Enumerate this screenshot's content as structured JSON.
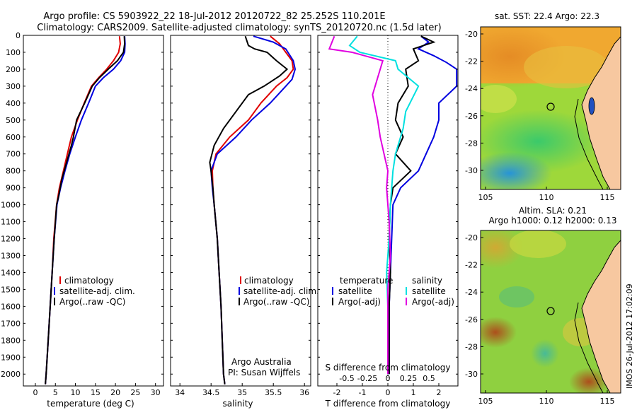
{
  "header": {
    "line1": "Argo profile: CS 5903922_22 18-Jul-2012 20120722_82 25.252S 110.201E",
    "line2": "Climatology: CARS2009. Satellite-adjusted climatology: synTS_20120720.nc (1.5d later)"
  },
  "colors": {
    "climatology": "#e00000",
    "satellite": "#0000e0",
    "argo": "#000000",
    "satellite_s": "#00e0e0",
    "argo_s": "#e000e0",
    "land": "#f7c8a0"
  },
  "depth_ticks": [
    "0",
    "100",
    "200",
    "300",
    "400",
    "500",
    "600",
    "700",
    "800",
    "900",
    "1000",
    "1100",
    "1200",
    "1300",
    "1400",
    "1500",
    "1600",
    "1700",
    "1800",
    "1900",
    "2000"
  ],
  "chart_data": [
    {
      "type": "line",
      "id": "temperature",
      "xlabel": "temperature (deg C)",
      "ylabel": "",
      "xlim": [
        -3,
        32
      ],
      "ylim": [
        2070,
        0
      ],
      "xticks": [
        0,
        5,
        10,
        15,
        20,
        25,
        30
      ],
      "x_tick_labels": [
        "0",
        "5",
        "10",
        "15",
        "20",
        "25",
        "30"
      ],
      "legend": [
        "climatology",
        "satellite-adj. clim.",
        "Argo(..raw -QC)"
      ],
      "series": [
        {
          "name": "climatology",
          "color": "#e00000",
          "points": [
            [
              21.0,
              5
            ],
            [
              21.2,
              50
            ],
            [
              20.8,
              100
            ],
            [
              19.5,
              150
            ],
            [
              17.8,
              200
            ],
            [
              15.8,
              250
            ],
            [
              14.0,
              300
            ],
            [
              12.2,
              400
            ],
            [
              10.5,
              500
            ],
            [
              9.0,
              600
            ],
            [
              8.0,
              700
            ],
            [
              7.0,
              800
            ],
            [
              6.0,
              900
            ],
            [
              5.3,
              1000
            ],
            [
              4.6,
              1200
            ],
            [
              4.2,
              1400
            ],
            [
              3.7,
              1600
            ],
            [
              3.2,
              1800
            ],
            [
              2.7,
              2000
            ],
            [
              2.5,
              2060
            ]
          ]
        },
        {
          "name": "satellite-adj. clim.",
          "color": "#0000e0",
          "points": [
            [
              22.3,
              5
            ],
            [
              22.4,
              50
            ],
            [
              22.3,
              100
            ],
            [
              21.3,
              150
            ],
            [
              19.5,
              200
            ],
            [
              17.0,
              250
            ],
            [
              15.0,
              300
            ],
            [
              13.3,
              400
            ],
            [
              11.5,
              500
            ],
            [
              10.0,
              600
            ],
            [
              8.6,
              700
            ],
            [
              7.4,
              800
            ],
            [
              6.3,
              900
            ],
            [
              5.4,
              1000
            ],
            [
              4.7,
              1200
            ],
            [
              4.2,
              1400
            ],
            [
              3.7,
              1600
            ],
            [
              3.2,
              1800
            ],
            [
              2.7,
              2000
            ],
            [
              2.5,
              2060
            ]
          ]
        },
        {
          "name": "Argo(..raw -QC)",
          "color": "#000000",
          "points": [
            [
              22.2,
              5
            ],
            [
              22.3,
              50
            ],
            [
              22.0,
              100
            ],
            [
              20.5,
              150
            ],
            [
              18.2,
              200
            ],
            [
              16.0,
              250
            ],
            [
              14.2,
              300
            ],
            [
              12.3,
              400
            ],
            [
              10.3,
              500
            ],
            [
              9.5,
              600
            ],
            [
              9.0,
              650
            ],
            [
              7.8,
              750
            ],
            [
              6.6,
              850
            ],
            [
              5.8,
              950
            ],
            [
              5.3,
              1000
            ],
            [
              4.7,
              1200
            ],
            [
              4.2,
              1400
            ],
            [
              3.7,
              1600
            ],
            [
              3.2,
              1800
            ],
            [
              2.7,
              2000
            ],
            [
              2.5,
              2060
            ]
          ]
        }
      ]
    },
    {
      "type": "line",
      "id": "salinity",
      "xlabel": "salinity",
      "ylabel": "",
      "xlim": [
        33.85,
        36.1
      ],
      "ylim": [
        2070,
        0
      ],
      "xticks": [
        34,
        34.5,
        35,
        35.5,
        36
      ],
      "x_tick_labels": [
        "34",
        "34.5",
        "35",
        "35.5",
        "36"
      ],
      "legend": [
        "climatology",
        "satellite-adj. clim.",
        "Argo(..raw -QC)"
      ],
      "annotation": [
        "Argo Australia",
        "PI: Susan Wijffels"
      ],
      "series": [
        {
          "name": "climatology",
          "color": "#e00000",
          "points": [
            [
              35.45,
              5
            ],
            [
              35.6,
              50
            ],
            [
              35.7,
              100
            ],
            [
              35.8,
              150
            ],
            [
              35.82,
              200
            ],
            [
              35.72,
              250
            ],
            [
              35.55,
              300
            ],
            [
              35.3,
              400
            ],
            [
              35.1,
              500
            ],
            [
              34.8,
              600
            ],
            [
              34.58,
              700
            ],
            [
              34.52,
              800
            ],
            [
              34.53,
              900
            ],
            [
              34.55,
              1000
            ],
            [
              34.6,
              1200
            ],
            [
              34.63,
              1400
            ],
            [
              34.66,
              1600
            ],
            [
              34.68,
              1800
            ],
            [
              34.7,
              2000
            ],
            [
              34.72,
              2060
            ]
          ]
        },
        {
          "name": "satellite-adj. clim.",
          "color": "#0000e0",
          "points": [
            [
              35.18,
              5
            ],
            [
              35.5,
              40
            ],
            [
              35.7,
              80
            ],
            [
              35.82,
              150
            ],
            [
              35.85,
              200
            ],
            [
              35.8,
              260
            ],
            [
              35.65,
              320
            ],
            [
              35.45,
              400
            ],
            [
              35.15,
              500
            ],
            [
              34.9,
              600
            ],
            [
              34.6,
              700
            ],
            [
              34.5,
              800
            ],
            [
              34.52,
              900
            ],
            [
              34.55,
              1000
            ],
            [
              34.6,
              1200
            ],
            [
              34.63,
              1400
            ],
            [
              34.66,
              1600
            ],
            [
              34.68,
              1800
            ],
            [
              34.7,
              2000
            ],
            [
              34.72,
              2060
            ]
          ]
        },
        {
          "name": "Argo(..raw -QC)",
          "color": "#000000",
          "points": [
            [
              35.05,
              5
            ],
            [
              35.1,
              60
            ],
            [
              35.2,
              80
            ],
            [
              35.4,
              100
            ],
            [
              35.55,
              150
            ],
            [
              35.72,
              200
            ],
            [
              35.6,
              240
            ],
            [
              35.35,
              300
            ],
            [
              35.1,
              350
            ],
            [
              34.9,
              450
            ],
            [
              34.7,
              550
            ],
            [
              34.55,
              650
            ],
            [
              34.48,
              750
            ],
            [
              34.5,
              800
            ],
            [
              34.53,
              900
            ],
            [
              34.55,
              1000
            ],
            [
              34.6,
              1200
            ],
            [
              34.63,
              1400
            ],
            [
              34.66,
              1600
            ],
            [
              34.68,
              1800
            ],
            [
              34.7,
              2000
            ],
            [
              34.72,
              2060
            ]
          ]
        }
      ]
    },
    {
      "type": "line",
      "id": "differences",
      "xlabel": "T difference from climatology",
      "xlabel_top": "S difference from climatology",
      "xlim": [
        -2.75,
        2.75
      ],
      "ylim": [
        2070,
        0
      ],
      "xticks": [
        -2,
        -1,
        0,
        1,
        2
      ],
      "x_tick_labels": [
        "-2",
        "-1",
        "0",
        "1",
        "2"
      ],
      "s_ticks": [
        -0.5,
        -0.25,
        0,
        0.25,
        0.5
      ],
      "s_tick_labels": [
        "-0.5",
        "-0.25",
        "0",
        "0.25",
        "0.5"
      ],
      "legend_temperature": [
        "temperature",
        "satellite",
        "Argo(-adj)"
      ],
      "legend_salinity": [
        "salinity",
        "satellite",
        "Argo(-adj)"
      ],
      "series": [
        {
          "name": "satellite",
          "color": "#0000e0",
          "points": [
            [
              1.3,
              5
            ],
            [
              1.6,
              40
            ],
            [
              1.2,
              80
            ],
            [
              1.8,
              120
            ],
            [
              2.3,
              160
            ],
            [
              2.7,
              200
            ],
            [
              2.7,
              300
            ],
            [
              2.0,
              400
            ],
            [
              2.0,
              500
            ],
            [
              1.8,
              600
            ],
            [
              1.5,
              700
            ],
            [
              1.2,
              800
            ],
            [
              0.5,
              900
            ],
            [
              0.2,
              1000
            ],
            [
              0.15,
              1200
            ],
            [
              0.1,
              1400
            ],
            [
              0.05,
              1600
            ],
            [
              0.05,
              2000
            ]
          ]
        },
        {
          "name": "Argo(-adj)",
          "color": "#000000",
          "points": [
            [
              1.3,
              5
            ],
            [
              1.8,
              40
            ],
            [
              1.0,
              80
            ],
            [
              1.2,
              150
            ],
            [
              0.7,
              200
            ],
            [
              0.8,
              300
            ],
            [
              0.4,
              400
            ],
            [
              0.3,
              500
            ],
            [
              0.6,
              600
            ],
            [
              0.3,
              700
            ],
            [
              0.9,
              800
            ],
            [
              0.2,
              900
            ],
            [
              0.1,
              1000
            ],
            [
              0.05,
              1200
            ],
            [
              0.1,
              1400
            ],
            [
              0.05,
              1600
            ],
            [
              0.05,
              2000
            ]
          ]
        },
        {
          "name": "satellite",
          "color": "#00e0e0",
          "points": [
            [
              -1.2,
              5
            ],
            [
              -1.5,
              60
            ],
            [
              -1.1,
              100
            ],
            [
              0.3,
              150
            ],
            [
              0.4,
              200
            ],
            [
              0.8,
              250
            ],
            [
              1.2,
              300
            ],
            [
              0.7,
              450
            ],
            [
              0.6,
              550
            ],
            [
              0.3,
              700
            ],
            [
              0.2,
              800
            ],
            [
              0.1,
              1000
            ],
            [
              0.05,
              1200
            ],
            [
              -0.05,
              1400
            ],
            [
              0,
              1600
            ],
            [
              0.0,
              2000
            ]
          ]
        },
        {
          "name": "Argo(-adj)",
          "color": "#e000e0",
          "points": [
            [
              -2.1,
              5
            ],
            [
              -2.3,
              80
            ],
            [
              -1.4,
              100
            ],
            [
              -0.2,
              150
            ],
            [
              -0.4,
              250
            ],
            [
              -0.6,
              350
            ],
            [
              -0.4,
              500
            ],
            [
              -0.3,
              600
            ],
            [
              0.0,
              800
            ],
            [
              -0.05,
              900
            ],
            [
              0.05,
              1100
            ],
            [
              0.1,
              1300
            ],
            [
              0.0,
              1500
            ],
            [
              0.0,
              2000
            ]
          ]
        }
      ]
    }
  ],
  "maps": [
    {
      "title": "sat. SST: 22.4 Argo: 22.3",
      "lon_ticks": [
        "105",
        "110",
        "115"
      ],
      "lat_ticks": [
        "-20",
        "-22",
        "-24",
        "-26",
        "-28",
        "-30"
      ]
    },
    {
      "title1": "Altim. SLA: 0.21",
      "title2": "Argo h1000: 0.12 h2000: 0.13",
      "lon_ticks": [
        "105",
        "110",
        "115"
      ],
      "lat_ticks": [
        "-20",
        "-22",
        "-24",
        "-26",
        "-28",
        "-30"
      ],
      "stamp": "IMOS 26-Jul-2012 17:02:09"
    }
  ]
}
